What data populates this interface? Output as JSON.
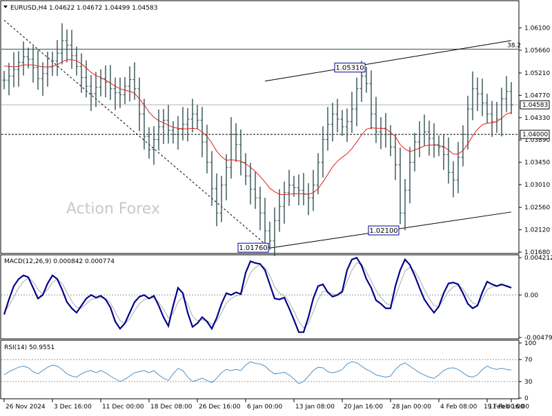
{
  "chart_data": [
    {
      "type": "candlestick",
      "panel": "price",
      "symbol_header": "EURUSD,H4 1.04622 1.04672 1.04499 1.04583",
      "watermark": "Action Forex",
      "ylim": [
        1.0168,
        1.0635
      ],
      "y_ticks": [
        "1.06100",
        "1.05660",
        "1.05210",
        "1.04770",
        "1.04330",
        "1.03890",
        "1.03450",
        "1.03010",
        "1.02560",
        "1.02120",
        "1.01680"
      ],
      "y_tick_values": [
        1.061,
        1.0566,
        1.0521,
        1.0477,
        1.0433,
        1.0389,
        1.0345,
        1.0301,
        1.0256,
        1.0212,
        1.0168
      ],
      "current_price_label": "1.04583",
      "current_price": 1.04583,
      "level_label": "1.04000",
      "level": 1.04,
      "fib_label": "38.2",
      "fib_level": 1.0568,
      "annotations": [
        {
          "label": "1.05310",
          "value": 1.0531,
          "bar": 75
        },
        {
          "label": "1.02100",
          "value": 1.021,
          "bar": 82
        },
        {
          "label": "1.01760",
          "value": 1.0176,
          "bar": 55
        }
      ],
      "channel_upper": [
        {
          "bar": 54,
          "value": 1.0505
        },
        {
          "bar": 105,
          "value": 1.0585
        }
      ],
      "channel_lower": [
        {
          "bar": 55,
          "value": 1.0176
        },
        {
          "bar": 105,
          "value": 1.0247
        }
      ],
      "trendline": [
        {
          "bar": 0,
          "value": 1.0625
        },
        {
          "bar": 55,
          "value": 1.0176
        }
      ],
      "moving_average_color": "#e0201b",
      "candle_color": "#2f4f4f",
      "close_series": [
        1.0507,
        1.0515,
        1.0528,
        1.0542,
        1.0553,
        1.0548,
        1.0532,
        1.051,
        1.052,
        1.0533,
        1.0545,
        1.056,
        1.0585,
        1.0576,
        1.0555,
        1.0534,
        1.0512,
        1.0495,
        1.048,
        1.0493,
        1.051,
        1.0503,
        1.049,
        1.0482,
        1.0478,
        1.0495,
        1.0508,
        1.049,
        1.044,
        1.0396,
        1.037,
        1.039,
        1.0415,
        1.0428,
        1.0408,
        1.04,
        1.041,
        1.042,
        1.043,
        1.044,
        1.0428,
        1.0385,
        1.0345,
        1.0293,
        1.0245,
        1.03,
        1.0335,
        1.04,
        1.038,
        1.0345,
        1.0318,
        1.0292,
        1.0275,
        1.0245,
        1.021,
        1.019,
        1.023,
        1.0258,
        1.0285,
        1.03,
        1.0295,
        1.029,
        1.0282,
        1.0275,
        1.03,
        1.0345,
        1.039,
        1.042,
        1.044,
        1.043,
        1.0415,
        1.0425,
        1.045,
        1.049,
        1.0515,
        1.05,
        1.044,
        1.0405,
        1.0412,
        1.04,
        1.0375,
        1.034,
        1.0245,
        1.029,
        1.0345,
        1.0385,
        1.04,
        1.0405,
        1.0392,
        1.038,
        1.0375,
        1.036,
        1.0325,
        1.031,
        1.0355,
        1.04,
        1.045,
        1.049,
        1.048,
        1.0462,
        1.044,
        1.0425,
        1.043,
        1.047,
        1.0485,
        1.0458
      ],
      "ma_series": [
        1.0535,
        1.0534,
        1.0533,
        1.0534,
        1.0537,
        1.0537,
        1.0537,
        1.0535,
        1.0533,
        1.0533,
        1.0534,
        1.0537,
        1.0543,
        1.0547,
        1.0547,
        1.0545,
        1.0539,
        1.0531,
        1.0522,
        1.0516,
        1.0512,
        1.0507,
        1.0501,
        1.0495,
        1.049,
        1.0487,
        1.0485,
        1.0481,
        1.047,
        1.0458,
        1.0444,
        1.0434,
        1.0427,
        1.0423,
        1.0418,
        1.0414,
        1.0412,
        1.0411,
        1.0411,
        1.0412,
        1.0411,
        1.0405,
        1.0396,
        1.0383,
        1.0367,
        1.0356,
        1.0349,
        1.035,
        1.0349,
        1.0347,
        1.0342,
        1.0335,
        1.0327,
        1.0317,
        1.0306,
        1.0294,
        1.0287,
        1.0282,
        1.0281,
        1.0282,
        1.0283,
        1.0283,
        1.0283,
        1.0282,
        1.0285,
        1.0293,
        1.0306,
        1.0321,
        1.0336,
        1.0347,
        1.0355,
        1.0362,
        1.0372,
        1.0385,
        1.0399,
        1.041,
        1.0413,
        1.0412,
        1.0412,
        1.0411,
        1.0404,
        1.0396,
        1.038,
        1.0371,
        1.0366,
        1.0369,
        1.0373,
        1.0377,
        1.0379,
        1.0379,
        1.0378,
        1.0376,
        1.0369,
        1.0361,
        1.0361,
        1.0368,
        1.0381,
        1.0397,
        1.041,
        1.0419,
        1.0422,
        1.0423,
        1.0425,
        1.0432,
        1.044,
        1.0443
      ]
    },
    {
      "type": "line",
      "panel": "macd",
      "indicator_header": "MACD(12,26,9) 0.000842 0.000774",
      "ylim": [
        -0.004794,
        0.004212
      ],
      "y_ticks": [
        "0.004212",
        "0.00",
        "-0.004794"
      ],
      "y_tick_values": [
        0.004212,
        0.0,
        -0.004794
      ],
      "macd_color": "#00008b",
      "signal_color": "#aaaaaa",
      "macd_series": [
        -0.0022,
        -0.0005,
        0.001,
        0.0018,
        0.0022,
        0.002,
        0.0008,
        -0.0004,
        0.0,
        0.0013,
        0.0022,
        0.0018,
        0.0006,
        -0.0008,
        -0.0015,
        -0.002,
        -0.0012,
        -0.0004,
        0.0,
        -0.0003,
        -0.0001,
        -0.0005,
        -0.0014,
        -0.003,
        -0.0038,
        -0.0032,
        -0.002,
        -0.0008,
        -0.0002,
        0.0,
        -0.0004,
        -0.0001,
        -0.0012,
        -0.0025,
        -0.0035,
        -0.0012,
        0.0008,
        0.0002,
        -0.002,
        -0.0036,
        -0.0032,
        -0.0025,
        -0.003,
        -0.0038,
        -0.0026,
        -0.001,
        0.0002,
        0.0,
        0.0003,
        0.0001,
        0.0025,
        0.0038,
        0.0036,
        0.0035,
        0.0028,
        0.0012,
        -0.0004,
        -0.0005,
        -0.0003,
        -0.0015,
        -0.0028,
        -0.0042,
        -0.0042,
        -0.0025,
        -0.0004,
        0.001,
        0.0012,
        0.0003,
        -0.0002,
        0.0,
        0.0004,
        0.0028,
        0.004,
        0.0042,
        0.0033,
        0.0018,
        0.0008,
        -0.0006,
        -0.001,
        -0.0015,
        -0.0015,
        0.001,
        0.0028,
        0.004,
        0.0034,
        0.0022,
        0.0008,
        -0.0005,
        -0.0013,
        -0.002,
        -0.0013,
        0.0002,
        0.0013,
        0.0014,
        0.0012,
        0.0002,
        -0.001,
        -0.0015,
        -0.0012,
        0.0003,
        0.0015,
        0.0012,
        0.001,
        0.0012,
        0.001,
        0.0008
      ],
      "signal_series": [
        -0.002,
        -0.0012,
        -0.0002,
        0.0008,
        0.0015,
        0.0019,
        0.0015,
        0.0006,
        0.0001,
        0.0006,
        0.0014,
        0.0018,
        0.0013,
        0.0003,
        -0.0007,
        -0.0014,
        -0.0015,
        -0.001,
        -0.0005,
        -0.0004,
        -0.0003,
        -0.0004,
        -0.0009,
        -0.0019,
        -0.0029,
        -0.0032,
        -0.0027,
        -0.0018,
        -0.001,
        -0.0005,
        -0.0004,
        -0.0003,
        -0.0008,
        -0.0016,
        -0.0026,
        -0.0021,
        -0.0008,
        -0.0002,
        -0.001,
        -0.0024,
        -0.0029,
        -0.0028,
        -0.0029,
        -0.0033,
        -0.003,
        -0.002,
        -0.0009,
        -0.0004,
        -0.0001,
        0.0,
        0.0012,
        0.0025,
        0.0031,
        0.0034,
        0.0031,
        0.0022,
        0.0009,
        0.0002,
        -0.0001,
        -0.0008,
        -0.0018,
        -0.003,
        -0.0037,
        -0.0032,
        -0.0019,
        -0.0005,
        0.0004,
        0.0004,
        0.0001,
        0.0,
        0.0002,
        0.0015,
        0.0028,
        0.0036,
        0.0035,
        0.0026,
        0.0016,
        0.0005,
        -0.0003,
        -0.0009,
        -0.0012,
        -0.0002,
        0.0013,
        0.0027,
        0.0031,
        0.0027,
        0.0018,
        0.0006,
        -0.0004,
        -0.0012,
        -0.0013,
        -0.0005,
        0.0004,
        0.0009,
        0.0011,
        0.0007,
        -0.0002,
        -0.0009,
        -0.0011,
        -0.0004,
        0.0006,
        0.0009,
        0.001,
        0.0011,
        0.0011,
        0.0009
      ]
    },
    {
      "type": "line",
      "panel": "rsi",
      "indicator_header": "RSI(14) 50.9551",
      "ylim": [
        0,
        100
      ],
      "y_ticks": [
        "100",
        "70",
        "30",
        "0"
      ],
      "y_tick_values": [
        100,
        70,
        30,
        0
      ],
      "rsi_color": "#4a90c8",
      "rsi_series": [
        42,
        48,
        52,
        56,
        58,
        55,
        48,
        44,
        50,
        56,
        60,
        58,
        52,
        44,
        40,
        38,
        44,
        48,
        50,
        46,
        50,
        46,
        40,
        35,
        30,
        34,
        40,
        46,
        48,
        50,
        46,
        50,
        42,
        36,
        32,
        44,
        54,
        50,
        38,
        30,
        33,
        36,
        32,
        28,
        36,
        46,
        52,
        50,
        52,
        50,
        60,
        66,
        63,
        62,
        58,
        50,
        44,
        45,
        47,
        42,
        35,
        26,
        30,
        40,
        50,
        56,
        55,
        48,
        46,
        48,
        52,
        62,
        66,
        64,
        58,
        52,
        48,
        42,
        40,
        38,
        40,
        52,
        60,
        64,
        58,
        52,
        46,
        42,
        38,
        36,
        42,
        50,
        54,
        55,
        52,
        46,
        40,
        38,
        42,
        52,
        58,
        54,
        52,
        54,
        52,
        51
      ]
    }
  ],
  "x_axis": {
    "labels": [
      "26 Nov 2024",
      "3 Dec 16:00",
      "11 Dec 00:00",
      "18 Dec 08:00",
      "26 Dec 16:00",
      "6 Jan 00:00",
      "13 Jan 08:00",
      "20 Jan 16:00",
      "28 Jan 00:00",
      "4 Feb 08:00",
      "11 Feb 16:00",
      "19 Feb 00:00"
    ],
    "label_bars": [
      0,
      10,
      20,
      30,
      40,
      50,
      60,
      70,
      80,
      90,
      100,
      105
    ]
  }
}
